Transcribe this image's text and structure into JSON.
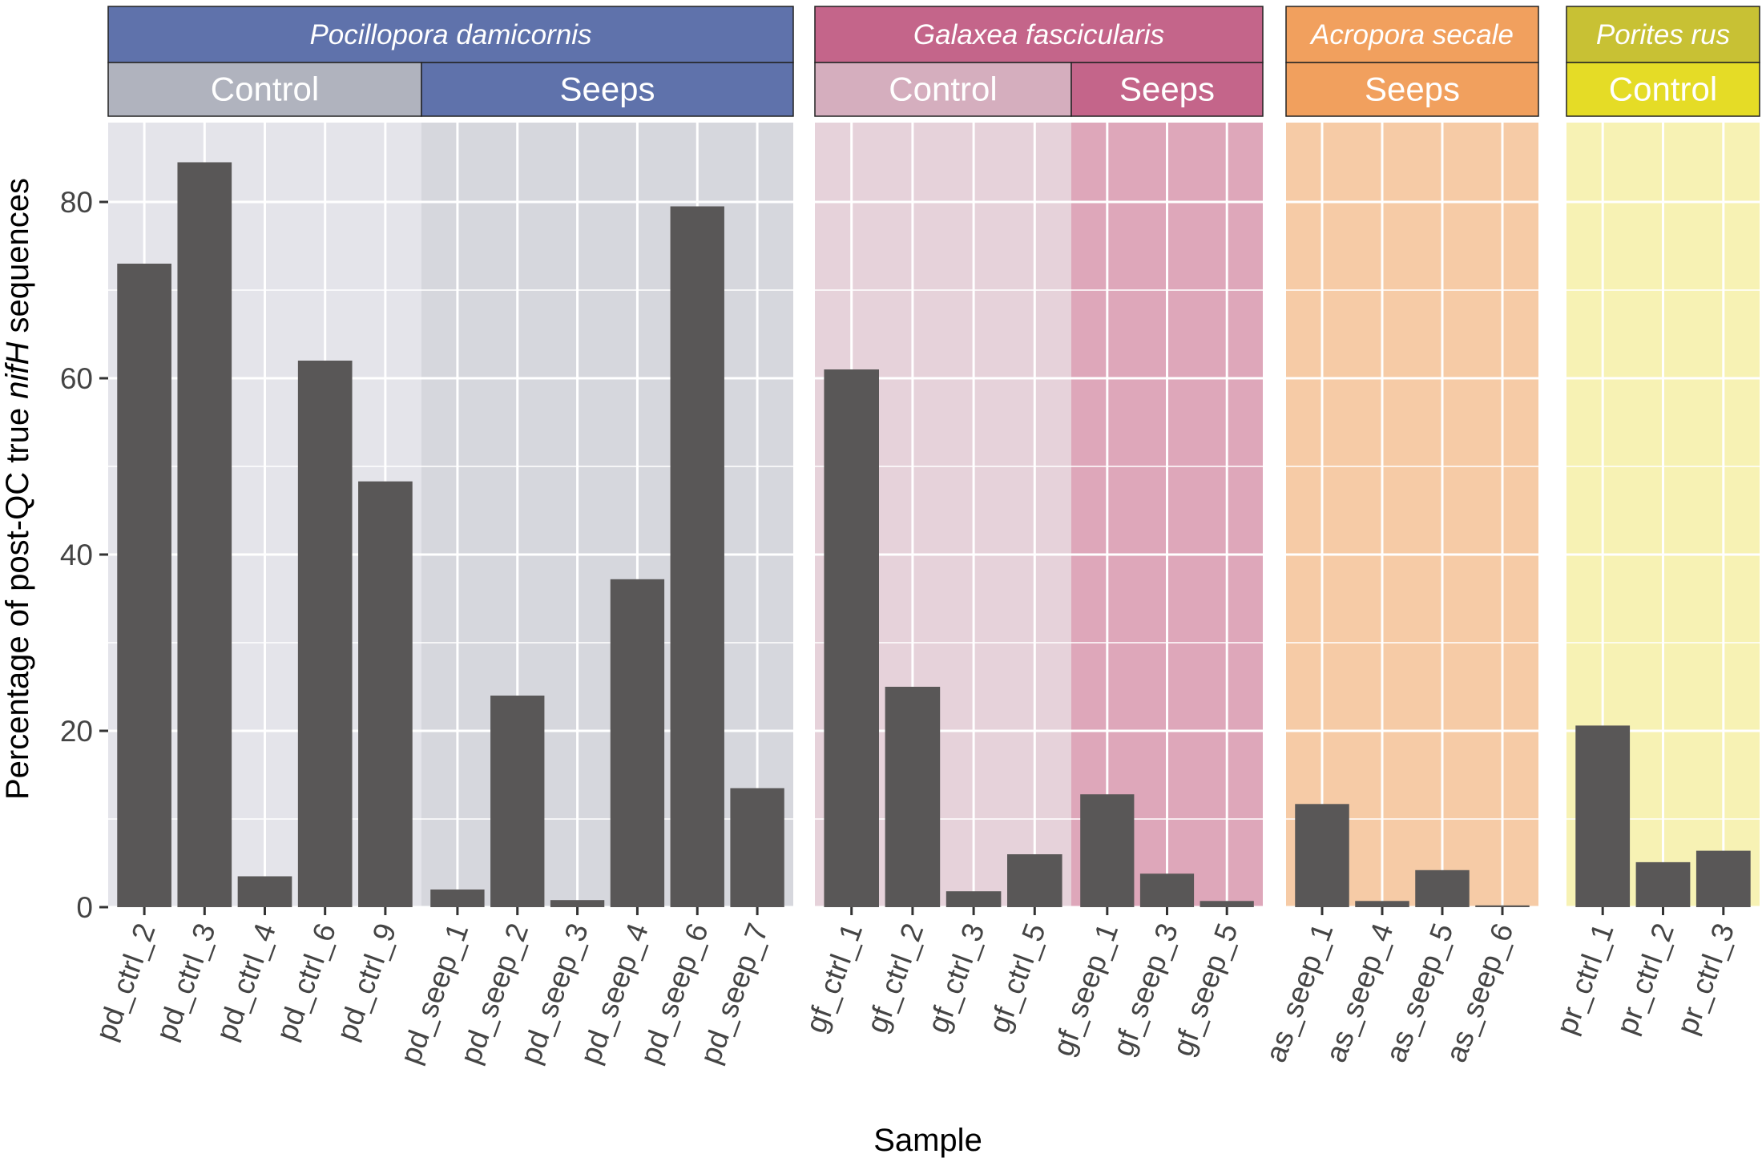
{
  "chart_data": {
    "type": "bar",
    "title": "",
    "xlabel": "Sample",
    "ylabel_prefix": "Percentage of post-QC true ",
    "ylabel_italic": "nifH",
    "ylabel_suffix": " sequences",
    "ylim": [
      0,
      89
    ],
    "yticks": [
      0,
      20,
      40,
      60,
      80
    ],
    "grid": true,
    "bar_color": "#595757",
    "panels": [
      {
        "species": "Pocillopora damicornis",
        "species_color": "#5f72ab",
        "groups": [
          {
            "label": "Control",
            "label_color": "#b0b3be",
            "bg_color": "#e4e4ea",
            "categories": [
              "pd_ctrl_2",
              "pd_ctrl_3",
              "pd_ctrl_4",
              "pd_ctrl_6",
              "pd_ctrl_9"
            ],
            "values": [
              73,
              84.5,
              3.5,
              62,
              48.3
            ]
          },
          {
            "label": "Seeps",
            "label_color": "#5f72ab",
            "bg_color": "#d6d7dd",
            "categories": [
              "pd_seep_1",
              "pd_seep_2",
              "pd_seep_3",
              "pd_seep_4",
              "pd_seep_6",
              "pd_seep_7"
            ],
            "values": [
              2,
              24,
              0.8,
              37.2,
              79.5,
              13.5
            ]
          }
        ]
      },
      {
        "species": "Galaxea fascicularis",
        "species_color": "#c4658a",
        "groups": [
          {
            "label": "Control",
            "label_color": "#d5aebe",
            "bg_color": "#e6d2da",
            "categories": [
              "gf_ctrl_1",
              "gf_ctrl_2",
              "gf_ctrl_3",
              "gf_ctrl_5"
            ],
            "values": [
              61,
              25,
              1.8,
              6
            ]
          },
          {
            "label": "Seeps",
            "label_color": "#c4658a",
            "bg_color": "#dea7ba",
            "categories": [
              "gf_seep_1",
              "gf_seep_3",
              "gf_seep_5"
            ],
            "values": [
              12.8,
              3.8,
              0.7
            ]
          }
        ]
      },
      {
        "species": "Acropora secale",
        "species_color": "#f1a05e",
        "groups": [
          {
            "label": "Seeps",
            "label_color": "#f1a05e",
            "bg_color": "#f6cba6",
            "categories": [
              "as_seep_1",
              "as_seep_4",
              "as_seep_5",
              "as_seep_6"
            ],
            "values": [
              11.7,
              0.7,
              4.2,
              0.2
            ]
          }
        ]
      },
      {
        "species": "Porites rus",
        "species_color": "#c8c134",
        "groups": [
          {
            "label": "Control",
            "label_color": "#e5dc26",
            "bg_color": "#f7f2b4",
            "categories": [
              "pr_ctrl_1",
              "pr_ctrl_2",
              "pr_ctrl_3"
            ],
            "values": [
              20.6,
              5.1,
              6.4
            ]
          }
        ]
      }
    ]
  }
}
